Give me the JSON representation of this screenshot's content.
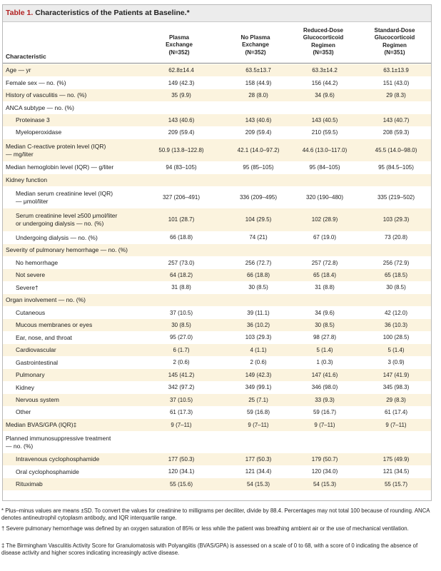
{
  "table": {
    "title_num": "Table 1.",
    "title_text": " Characteristics of the Patients at Baseline.*",
    "char_header": "Characteristic",
    "col_headers": [
      "Plasma\nExchange\n(N=352)",
      "No Plasma\nExchange\n(N=352)",
      "Reduced-Dose\nGlucocorticoid\nRegimen\n(N=353)",
      "Standard-Dose\nGlucocorticoid\nRegimen\n(N=351)"
    ],
    "rows": [
      {
        "label": "Age — yr",
        "values": [
          "62.8±14.4",
          "63.5±13.7",
          "63.3±14.2",
          "63.1±13.9"
        ]
      },
      {
        "label": "Female sex — no. (%)",
        "values": [
          "149 (42.3)",
          "158 (44.9)",
          "156 (44.2)",
          "151 (43.0)"
        ]
      },
      {
        "label": "History of vasculitis — no. (%)",
        "values": [
          "35 (9.9)",
          "28 (8.0)",
          "34 (9.6)",
          "29 (8.3)"
        ]
      },
      {
        "label": "ANCA subtype — no. (%)",
        "values": [
          "",
          "",
          "",
          ""
        ]
      },
      {
        "label": "Proteinase 3",
        "values": [
          "143 (40.6)",
          "143 (40.6)",
          "143 (40.5)",
          "143 (40.7)"
        ]
      },
      {
        "label": "Myeloperoxidase",
        "values": [
          "209 (59.4)",
          "209 (59.4)",
          "210 (59.5)",
          "208 (59.3)"
        ]
      },
      {
        "label": "Median C-reactive protein level (IQR)\n— mg/liter",
        "values": [
          "50.9 (13.8–122.8)",
          "42.1 (14.0–97.2)",
          "44.6 (13.0–117.0)",
          "45.5 (14.0–98.0)"
        ]
      },
      {
        "label": "Median hemoglobin level (IQR) — g/liter",
        "values": [
          "94 (83–105)",
          "95 (85–105)",
          "95 (84–105)",
          "95 (84.5–105)"
        ]
      },
      {
        "label": "Kidney function",
        "values": [
          "",
          "",
          "",
          ""
        ]
      },
      {
        "label": "Median serum creatinine level (IQR)\n— μmol/liter",
        "values": [
          "327 (206–491)",
          "336 (209–495)",
          "320 (190–480)",
          "335 (219–502)"
        ]
      },
      {
        "label": "Serum creatinine level ≥500 μmol/liter\nor undergoing dialysis — no. (%)",
        "values": [
          "101 (28.7)",
          "104 (29.5)",
          "102 (28.9)",
          "103 (29.3)"
        ]
      },
      {
        "label": "Undergoing dialysis — no. (%)",
        "values": [
          "66 (18.8)",
          "74 (21)",
          "67 (19.0)",
          "73 (20.8)"
        ]
      },
      {
        "label": "Severity of pulmonary hemorrhage — no. (%)",
        "values": [
          "",
          "",
          "",
          ""
        ]
      },
      {
        "label": "No hemorrhage",
        "values": [
          "257 (73.0)",
          "256 (72.7)",
          "257 (72.8)",
          "256 (72.9)"
        ]
      },
      {
        "label": "Not severe",
        "values": [
          "64 (18.2)",
          "66 (18.8)",
          "65 (18.4)",
          "65 (18.5)"
        ]
      },
      {
        "label": "Severe†",
        "values": [
          "31 (8.8)",
          "30 (8.5)",
          "31 (8.8)",
          "30 (8.5)"
        ]
      },
      {
        "label": "Organ involvement — no. (%)",
        "values": [
          "",
          "",
          "",
          ""
        ]
      },
      {
        "label": "Cutaneous",
        "values": [
          "37 (10.5)",
          "39 (11.1)",
          "34 (9.6)",
          "42 (12.0)"
        ]
      },
      {
        "label": "Mucous membranes or eyes",
        "values": [
          "30 (8.5)",
          "36 (10.2)",
          "30 (8.5)",
          "36 (10.3)"
        ]
      },
      {
        "label": "Ear, nose, and throat",
        "values": [
          "95 (27.0)",
          "103 (29.3)",
          "98 (27.8)",
          "100 (28.5)"
        ]
      },
      {
        "label": "Cardiovascular",
        "values": [
          "6 (1.7)",
          "4 (1.1)",
          "5 (1.4)",
          "5 (1.4)"
        ]
      },
      {
        "label": "Gastrointestinal",
        "values": [
          "2 (0.6)",
          "2 (0.6)",
          "1 (0.3)",
          "3 (0.9)"
        ]
      },
      {
        "label": "Pulmonary",
        "values": [
          "145 (41.2)",
          "149 (42.3)",
          "147 (41.6)",
          "147 (41.9)"
        ]
      },
      {
        "label": "Kidney",
        "values": [
          "342 (97.2)",
          "349 (99.1)",
          "346 (98.0)",
          "345 (98.3)"
        ]
      },
      {
        "label": "Nervous system",
        "values": [
          "37 (10.5)",
          "25 (7.1)",
          "33 (9.3)",
          "29 (8.3)"
        ]
      },
      {
        "label": "Other",
        "values": [
          "61 (17.3)",
          "59 (16.8)",
          "59 (16.7)",
          "61 (17.4)"
        ]
      },
      {
        "label": "Median BVAS/GPA (IQR)‡",
        "values": [
          "9 (7–11)",
          "9 (7–11)",
          "9 (7–11)",
          "9 (7–11)"
        ]
      },
      {
        "label": "Planned immunosuppressive treatment\n— no. (%)",
        "values": [
          "",
          "",
          "",
          ""
        ]
      },
      {
        "label": "Intravenous cyclophosphamide",
        "values": [
          "177 (50.3)",
          "177 (50.3)",
          "179 (50.7)",
          "175 (49.9)"
        ]
      },
      {
        "label": "Oral cyclophosphamide",
        "values": [
          "120 (34.1)",
          "121 (34.4)",
          "120 (34.0)",
          "121 (34.5)"
        ]
      },
      {
        "label": "Rituximab",
        "values": [
          "55 (15.6)",
          "54 (15.3)",
          "54 (15.3)",
          "55 (15.7)"
        ]
      }
    ],
    "footnotes": [
      "* Plus–minus values are means ±SD. To convert the values for creatinine to milligrams per deciliter, divide by 88.4. Percentages may not total 100 because of rounding. ANCA denotes antineutrophil cytoplasm antibody, and IQR interquartile range.",
      "† Severe pulmonary hemorrhage was defined by an oxygen saturation of 85% or less while the patient was breathing ambient air or the use of mechanical ventilation.",
      "‡ The Birmingham Vasculitis Activity Score for Granulomatosis with Polyangiitis (BVAS/GPA) is assessed on a scale of 0 to 68, with a score of 0 indicating the absence of disease activity and higher scores indicating increasingly active disease."
    ],
    "colors": {
      "title_number": "#b22222",
      "row_shade": "#fbf3de",
      "title_bar": "#ececec"
    }
  }
}
